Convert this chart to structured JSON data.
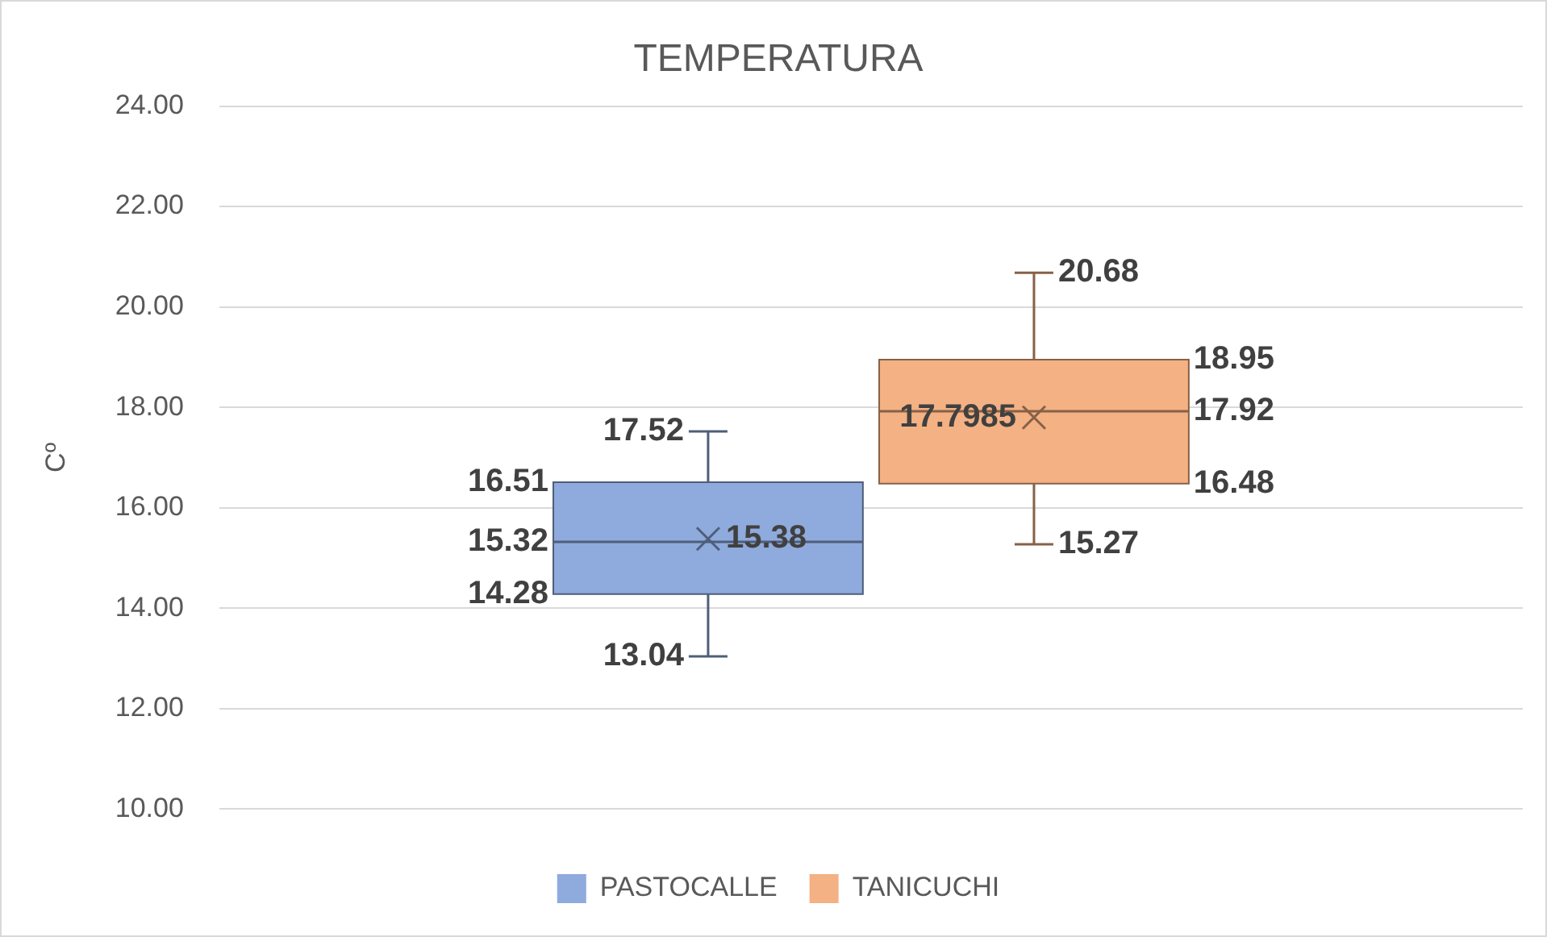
{
  "chart_data": {
    "type": "box",
    "title": "TEMPERATURA",
    "ylabel": "Cº",
    "categories": [
      null
    ],
    "series": [
      {
        "name": "PASTOCALLE",
        "color": "#8faadc",
        "boxes": [
          {
            "low": 13.04,
            "q1": 14.28,
            "median": 15.32,
            "q3": 16.51,
            "high": 17.52,
            "mean": 15.38
          }
        ]
      },
      {
        "name": "TANICUCHI",
        "color": "#f4b183",
        "boxes": [
          {
            "low": 15.27,
            "q1": 16.48,
            "median": 17.92,
            "q3": 18.95,
            "high": 20.68,
            "mean": 17.7985
          }
        ]
      }
    ],
    "ylim": [
      10,
      24
    ],
    "yticks": [
      {
        "value": 10,
        "label": "10.00"
      },
      {
        "value": 12,
        "label": "12.00"
      },
      {
        "value": 14,
        "label": "14.00"
      },
      {
        "value": 16,
        "label": "16.00"
      },
      {
        "value": 18,
        "label": "18.00"
      },
      {
        "value": 20,
        "label": "20.00"
      },
      {
        "value": 22,
        "label": "22.00"
      },
      {
        "value": 24,
        "label": "24.00"
      }
    ],
    "grid": "y",
    "legend": "bottom",
    "annotations": [
      "17.52",
      "16.51",
      "15.32",
      "14.28",
      "13.04",
      "15.38",
      "20.68",
      "18.95",
      "17.92",
      "16.48",
      "15.27",
      "17.7985"
    ]
  }
}
